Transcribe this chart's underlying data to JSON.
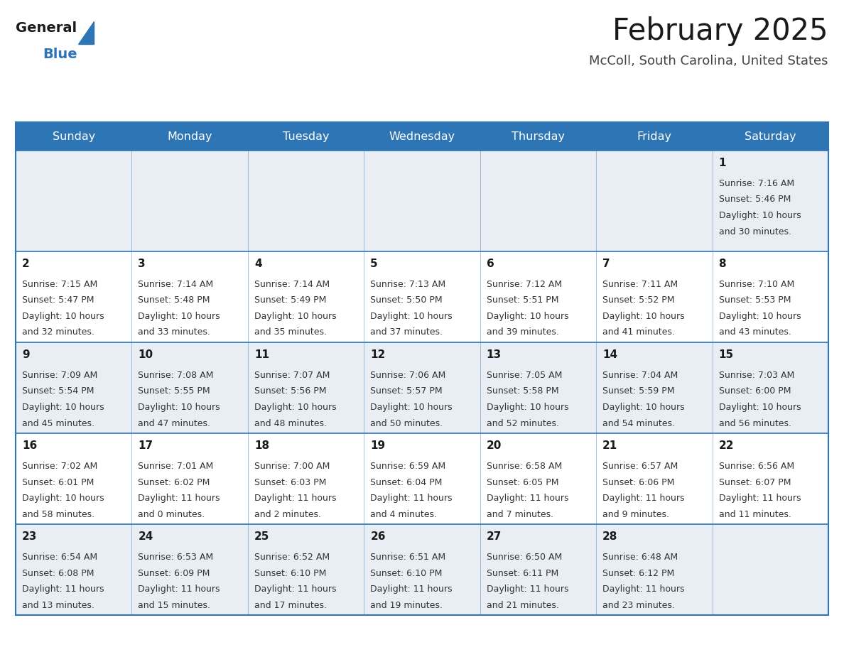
{
  "title": "February 2025",
  "subtitle": "McColl, South Carolina, United States",
  "days_of_week": [
    "Sunday",
    "Monday",
    "Tuesday",
    "Wednesday",
    "Thursday",
    "Friday",
    "Saturday"
  ],
  "header_bg": "#2e75b6",
  "header_text": "#ffffff",
  "row_bg_light": "#e9eef4",
  "row_bg_white": "#ffffff",
  "border_color": "#2e75b6",
  "text_color": "#333333",
  "day_num_color": "#1a1a1a",
  "title_color": "#1a1a1a",
  "subtitle_color": "#444444",
  "logo_general_color": "#1a1a1a",
  "logo_blue_color": "#2e75b6",
  "calendar_data": [
    [
      null,
      null,
      null,
      null,
      null,
      null,
      {
        "day": 1,
        "sunrise": "7:16 AM",
        "sunset": "5:46 PM",
        "daylight": "10 hours",
        "daylight2": "and 30 minutes."
      }
    ],
    [
      {
        "day": 2,
        "sunrise": "7:15 AM",
        "sunset": "5:47 PM",
        "daylight": "10 hours",
        "daylight2": "and 32 minutes."
      },
      {
        "day": 3,
        "sunrise": "7:14 AM",
        "sunset": "5:48 PM",
        "daylight": "10 hours",
        "daylight2": "and 33 minutes."
      },
      {
        "day": 4,
        "sunrise": "7:14 AM",
        "sunset": "5:49 PM",
        "daylight": "10 hours",
        "daylight2": "and 35 minutes."
      },
      {
        "day": 5,
        "sunrise": "7:13 AM",
        "sunset": "5:50 PM",
        "daylight": "10 hours",
        "daylight2": "and 37 minutes."
      },
      {
        "day": 6,
        "sunrise": "7:12 AM",
        "sunset": "5:51 PM",
        "daylight": "10 hours",
        "daylight2": "and 39 minutes."
      },
      {
        "day": 7,
        "sunrise": "7:11 AM",
        "sunset": "5:52 PM",
        "daylight": "10 hours",
        "daylight2": "and 41 minutes."
      },
      {
        "day": 8,
        "sunrise": "7:10 AM",
        "sunset": "5:53 PM",
        "daylight": "10 hours",
        "daylight2": "and 43 minutes."
      }
    ],
    [
      {
        "day": 9,
        "sunrise": "7:09 AM",
        "sunset": "5:54 PM",
        "daylight": "10 hours",
        "daylight2": "and 45 minutes."
      },
      {
        "day": 10,
        "sunrise": "7:08 AM",
        "sunset": "5:55 PM",
        "daylight": "10 hours",
        "daylight2": "and 47 minutes."
      },
      {
        "day": 11,
        "sunrise": "7:07 AM",
        "sunset": "5:56 PM",
        "daylight": "10 hours",
        "daylight2": "and 48 minutes."
      },
      {
        "day": 12,
        "sunrise": "7:06 AM",
        "sunset": "5:57 PM",
        "daylight": "10 hours",
        "daylight2": "and 50 minutes."
      },
      {
        "day": 13,
        "sunrise": "7:05 AM",
        "sunset": "5:58 PM",
        "daylight": "10 hours",
        "daylight2": "and 52 minutes."
      },
      {
        "day": 14,
        "sunrise": "7:04 AM",
        "sunset": "5:59 PM",
        "daylight": "10 hours",
        "daylight2": "and 54 minutes."
      },
      {
        "day": 15,
        "sunrise": "7:03 AM",
        "sunset": "6:00 PM",
        "daylight": "10 hours",
        "daylight2": "and 56 minutes."
      }
    ],
    [
      {
        "day": 16,
        "sunrise": "7:02 AM",
        "sunset": "6:01 PM",
        "daylight": "10 hours",
        "daylight2": "and 58 minutes."
      },
      {
        "day": 17,
        "sunrise": "7:01 AM",
        "sunset": "6:02 PM",
        "daylight": "11 hours",
        "daylight2": "and 0 minutes."
      },
      {
        "day": 18,
        "sunrise": "7:00 AM",
        "sunset": "6:03 PM",
        "daylight": "11 hours",
        "daylight2": "and 2 minutes."
      },
      {
        "day": 19,
        "sunrise": "6:59 AM",
        "sunset": "6:04 PM",
        "daylight": "11 hours",
        "daylight2": "and 4 minutes."
      },
      {
        "day": 20,
        "sunrise": "6:58 AM",
        "sunset": "6:05 PM",
        "daylight": "11 hours",
        "daylight2": "and 7 minutes."
      },
      {
        "day": 21,
        "sunrise": "6:57 AM",
        "sunset": "6:06 PM",
        "daylight": "11 hours",
        "daylight2": "and 9 minutes."
      },
      {
        "day": 22,
        "sunrise": "6:56 AM",
        "sunset": "6:07 PM",
        "daylight": "11 hours",
        "daylight2": "and 11 minutes."
      }
    ],
    [
      {
        "day": 23,
        "sunrise": "6:54 AM",
        "sunset": "6:08 PM",
        "daylight": "11 hours",
        "daylight2": "and 13 minutes."
      },
      {
        "day": 24,
        "sunrise": "6:53 AM",
        "sunset": "6:09 PM",
        "daylight": "11 hours",
        "daylight2": "and 15 minutes."
      },
      {
        "day": 25,
        "sunrise": "6:52 AM",
        "sunset": "6:10 PM",
        "daylight": "11 hours",
        "daylight2": "and 17 minutes."
      },
      {
        "day": 26,
        "sunrise": "6:51 AM",
        "sunset": "6:10 PM",
        "daylight": "11 hours",
        "daylight2": "and 19 minutes."
      },
      {
        "day": 27,
        "sunrise": "6:50 AM",
        "sunset": "6:11 PM",
        "daylight": "11 hours",
        "daylight2": "and 21 minutes."
      },
      {
        "day": 28,
        "sunrise": "6:48 AM",
        "sunset": "6:12 PM",
        "daylight": "11 hours",
        "daylight2": "and 23 minutes."
      },
      null
    ]
  ]
}
